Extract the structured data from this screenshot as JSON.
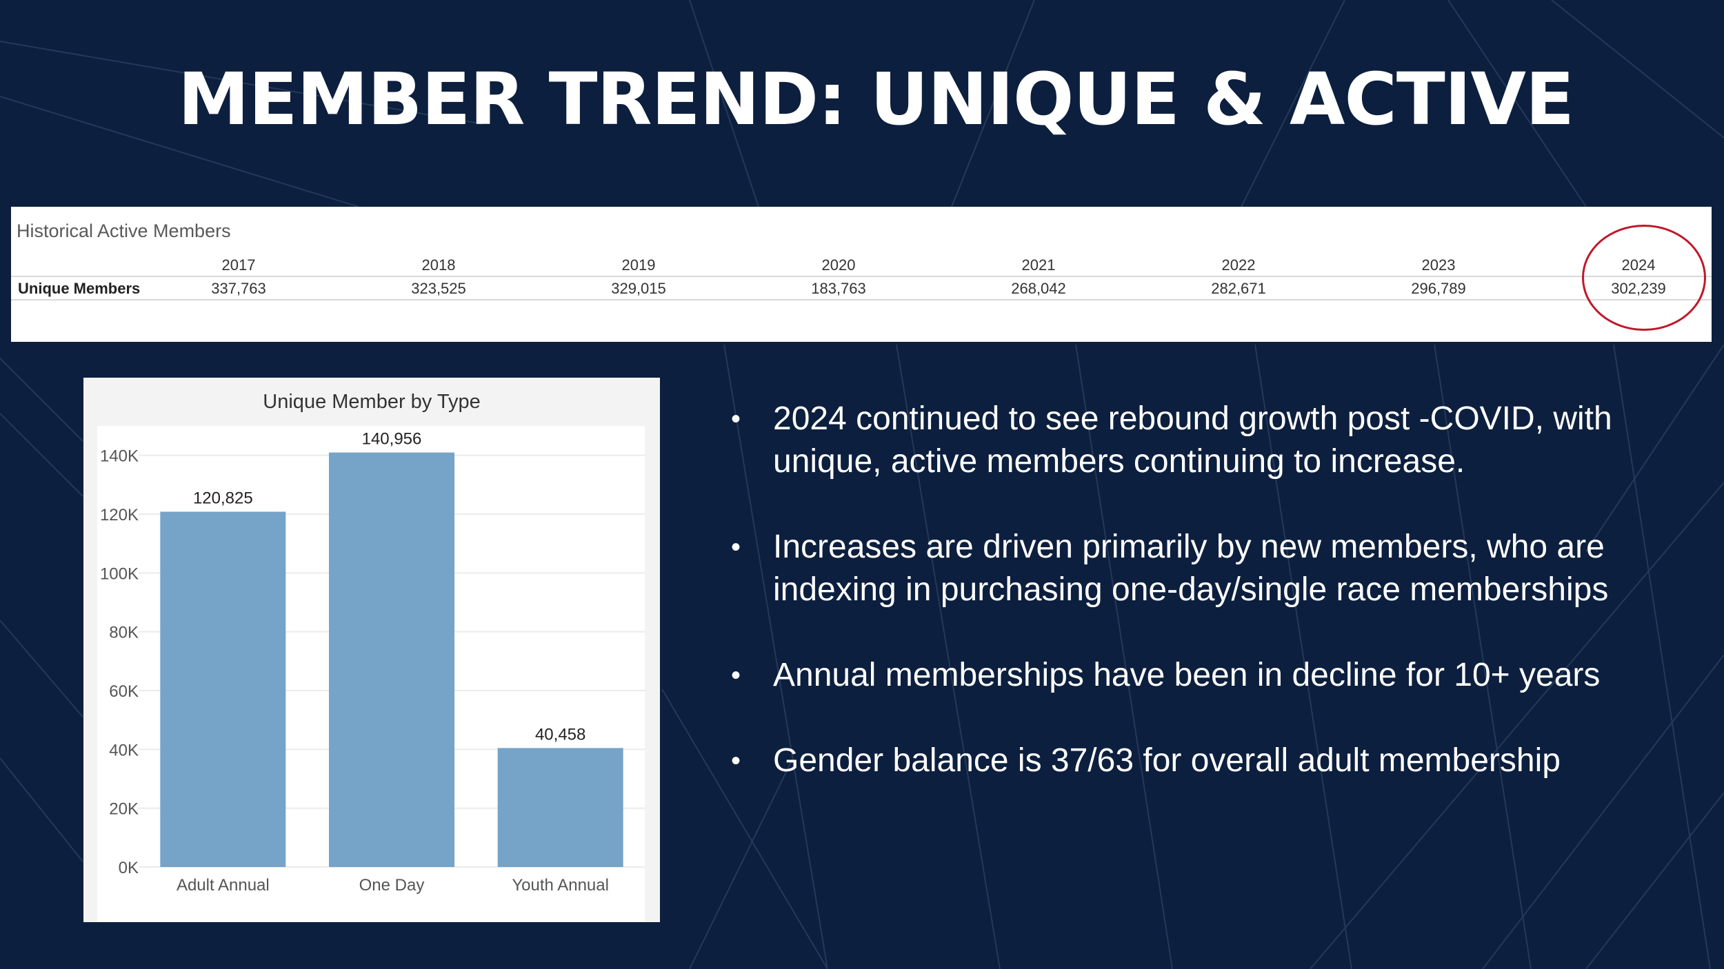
{
  "title": "MEMBER TREND: UNIQUE & ACTIVE",
  "historical": {
    "title": "Historical Active Members",
    "row_label": "Unique Members",
    "years": [
      "2017",
      "2018",
      "2019",
      "2020",
      "2021",
      "2022",
      "2023",
      "2024"
    ],
    "values": [
      "337,763",
      "323,525",
      "329,015",
      "183,763",
      "268,042",
      "282,671",
      "296,789",
      "302,239"
    ],
    "highlight_color": "#c0182a"
  },
  "bullets": [
    "2024 continued to see rebound growth post -COVID, with unique, active members continuing to increase.",
    "Increases are driven primarily by new members, who are indexing in purchasing one-day/single race memberships",
    "Annual memberships have been in decline for 10+ years",
    "Gender balance is 37/63 for overall adult membership"
  ],
  "colors": {
    "background": "#0d1f3e",
    "bar": "#76a3c8"
  },
  "chart_data": {
    "type": "bar",
    "title": "Unique Member by Type",
    "categories": [
      "Adult Annual",
      "One Day",
      "Youth Annual"
    ],
    "values": [
      120825,
      140956,
      40458
    ],
    "data_labels": [
      "120,825",
      "140,956",
      "40,458"
    ],
    "ylim": [
      0,
      150000
    ],
    "yticks": [
      0,
      20000,
      40000,
      60000,
      80000,
      100000,
      120000,
      140000
    ],
    "ytick_labels": [
      "0K",
      "20K",
      "40K",
      "60K",
      "80K",
      "100K",
      "120K",
      "140K"
    ],
    "grid": true,
    "xlabel": "",
    "ylabel": ""
  }
}
